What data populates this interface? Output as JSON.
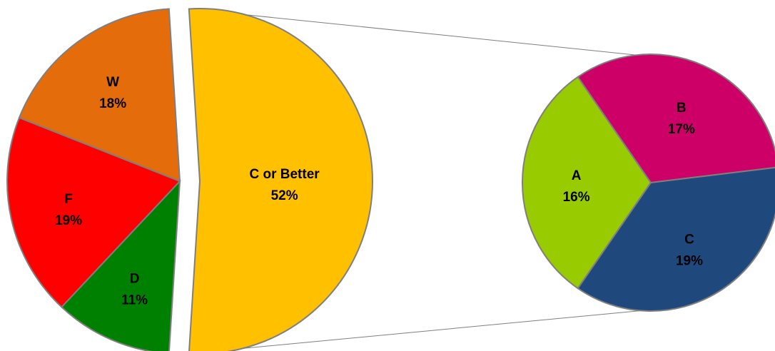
{
  "chart_data": {
    "type": "pie",
    "subtype": "pie-of-pie",
    "main_pie": {
      "slices": [
        {
          "label": "C or Better",
          "value": 52,
          "display": "52%",
          "color": "#FFC000",
          "exploded": true
        },
        {
          "label": "D",
          "value": 11,
          "display": "11%",
          "color": "#008000"
        },
        {
          "label": "F",
          "value": 19,
          "display": "19%",
          "color": "#FF0000"
        },
        {
          "label": "W",
          "value": 18,
          "display": "18%",
          "color": "#E46C0A"
        }
      ]
    },
    "secondary_pie": {
      "source_slice": "C or Better",
      "slices": [
        {
          "label": "A",
          "value": 16,
          "display": "16%",
          "color": "#99CC00"
        },
        {
          "label": "B",
          "value": 17,
          "display": "17%",
          "color": "#CC0066"
        },
        {
          "label": "C",
          "value": 19,
          "display": "19%",
          "color": "#1F497D"
        }
      ]
    },
    "legend": "none",
    "title": ""
  }
}
